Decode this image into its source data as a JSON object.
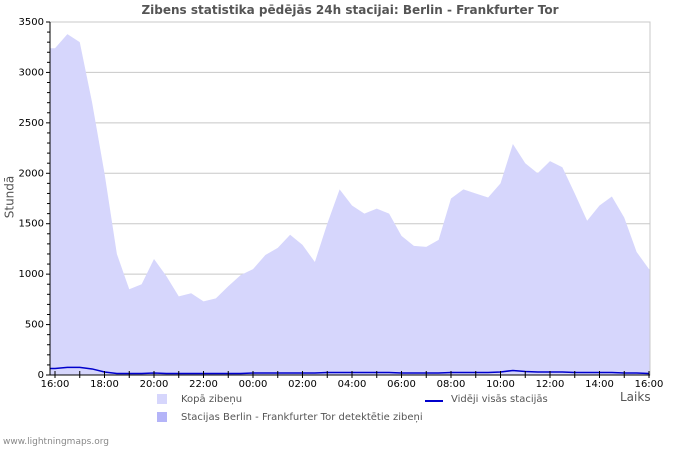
{
  "title": "Zibens statistika pēdējās 24h stacijai: Berlin - Frankfurter Tor",
  "footer": "www.lightningmaps.org",
  "chart_data": {
    "type": "area",
    "title": "Zibens statistika pēdējās 24h stacijai: Berlin - Frankfurter Tor",
    "xlabel": "Laiks",
    "ylabel": "Stundā",
    "ylim": [
      0,
      3500
    ],
    "yticks": [
      0,
      500,
      1000,
      1500,
      2000,
      2500,
      3000,
      3500
    ],
    "xticks": [
      "16:00",
      "18:00",
      "20:00",
      "22:00",
      "00:00",
      "02:00",
      "04:00",
      "06:00",
      "08:00",
      "10:00",
      "12:00",
      "14:00",
      "16:00"
    ],
    "grid": true,
    "legend_position": "bottom",
    "x": [
      "16:00",
      "16:30",
      "17:00",
      "17:30",
      "18:00",
      "18:30",
      "19:00",
      "19:30",
      "20:00",
      "20:30",
      "21:00",
      "21:30",
      "22:00",
      "22:30",
      "23:00",
      "23:30",
      "00:00",
      "00:30",
      "01:00",
      "01:30",
      "02:00",
      "02:30",
      "03:00",
      "03:30",
      "04:00",
      "04:30",
      "05:00",
      "05:30",
      "06:00",
      "06:30",
      "07:00",
      "07:30",
      "08:00",
      "08:30",
      "09:00",
      "09:30",
      "10:00",
      "10:30",
      "11:00",
      "11:30",
      "12:00",
      "12:30",
      "13:00",
      "13:30",
      "14:00",
      "14:30",
      "15:00",
      "15:30",
      "16:00"
    ],
    "series": [
      {
        "name": "Kopā zibeņu",
        "type": "area",
        "color": "#d6d6fc",
        "values": [
          3240,
          3380,
          3300,
          2700,
          2000,
          1200,
          850,
          900,
          1150,
          980,
          780,
          810,
          730,
          760,
          880,
          990,
          1050,
          1190,
          1260,
          1390,
          1290,
          1120,
          1500,
          1840,
          1680,
          1600,
          1650,
          1600,
          1380,
          1280,
          1270,
          1340,
          1750,
          1840,
          1800,
          1760,
          1900,
          2290,
          2100,
          2000,
          2120,
          2060,
          1800,
          1530,
          1680,
          1770,
          1560,
          1220,
          1050
        ]
      },
      {
        "name": "Stacijas Berlin - Frankfurter Tor detektētie zibeņi",
        "type": "area",
        "color": "#b4b4f8",
        "values": [
          0,
          0,
          0,
          0,
          0,
          0,
          0,
          0,
          0,
          0,
          0,
          0,
          0,
          0,
          0,
          0,
          0,
          0,
          0,
          0,
          0,
          0,
          0,
          0,
          0,
          0,
          0,
          0,
          0,
          0,
          0,
          0,
          0,
          0,
          0,
          0,
          0,
          0,
          0,
          0,
          0,
          0,
          0,
          0,
          0,
          0,
          0,
          0,
          0
        ]
      },
      {
        "name": "Vidēji visās stacijās",
        "type": "line",
        "color": "#0000cc",
        "values": [
          65,
          75,
          75,
          60,
          30,
          15,
          15,
          15,
          20,
          15,
          15,
          15,
          15,
          15,
          15,
          15,
          20,
          20,
          20,
          20,
          20,
          20,
          25,
          25,
          25,
          25,
          25,
          25,
          20,
          20,
          20,
          20,
          25,
          25,
          25,
          25,
          30,
          45,
          35,
          30,
          30,
          30,
          25,
          25,
          25,
          25,
          20,
          20,
          15
        ]
      }
    ]
  },
  "legend": [
    {
      "label": "Kopā zibeņu",
      "kind": "swatch",
      "color": "#d6d6fc"
    },
    {
      "label": "Stacijas Berlin - Frankfurter Tor detektētie zibeņi",
      "kind": "swatch",
      "color": "#b4b4f8"
    },
    {
      "label": "Vidēji visās stacijās",
      "kind": "line",
      "color": "#0000cc"
    }
  ]
}
